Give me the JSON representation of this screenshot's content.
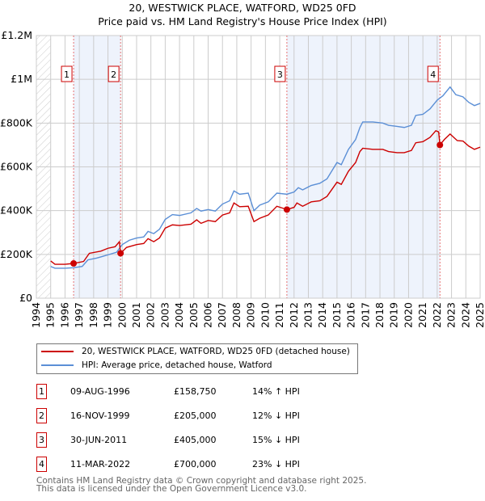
{
  "chart_data": {
    "type": "line",
    "title": "20, WESTWICK PLACE, WATFORD, WD25 0FD",
    "subtitle": "Price paid vs. HM Land Registry's House Price Index (HPI)",
    "xlim": [
      1994,
      2025
    ],
    "ylim": [
      0,
      1200000
    ],
    "y_ticks": [
      0,
      200000,
      400000,
      600000,
      800000,
      1000000,
      1200000
    ],
    "y_tick_labels": [
      "£0",
      "£200K",
      "£400K",
      "£600K",
      "£800K",
      "£1M",
      "£1.2M"
    ],
    "x_ticks": [
      1994,
      1995,
      1996,
      1997,
      1998,
      1999,
      2000,
      2001,
      2002,
      2003,
      2004,
      2005,
      2006,
      2007,
      2008,
      2009,
      2010,
      2011,
      2012,
      2013,
      2014,
      2015,
      2016,
      2017,
      2018,
      2019,
      2020,
      2021,
      2022,
      2023,
      2024,
      2025
    ],
    "grid": true,
    "colors": {
      "property": "#cc0000",
      "hpi": "#5b8fd6",
      "shade": "#eef3fc"
    },
    "series": [
      {
        "name": "20, WESTWICK PLACE, WATFORD, WD25 0FD (detached house)",
        "color": "#cc0000",
        "points": [
          [
            1995,
            170000
          ],
          [
            1995.3,
            155000
          ],
          [
            1996,
            155000
          ],
          [
            1996.6,
            158750
          ],
          [
            1997.3,
            168000
          ],
          [
            1997.7,
            205000
          ],
          [
            1998.5,
            215000
          ],
          [
            1999,
            228000
          ],
          [
            1999.5,
            235000
          ],
          [
            1999.8,
            258000
          ],
          [
            1999.88,
            205000
          ],
          [
            2000.3,
            232000
          ],
          [
            2001,
            245000
          ],
          [
            2001.5,
            250000
          ],
          [
            2001.8,
            272000
          ],
          [
            2002.2,
            258000
          ],
          [
            2002.6,
            275000
          ],
          [
            2003,
            320000
          ],
          [
            2003.5,
            335000
          ],
          [
            2004,
            332000
          ],
          [
            2004.8,
            338000
          ],
          [
            2005.2,
            358000
          ],
          [
            2005.5,
            342000
          ],
          [
            2006,
            355000
          ],
          [
            2006.5,
            350000
          ],
          [
            2007,
            380000
          ],
          [
            2007.5,
            390000
          ],
          [
            2007.8,
            435000
          ],
          [
            2008.2,
            418000
          ],
          [
            2008.8,
            420000
          ],
          [
            2009.2,
            350000
          ],
          [
            2009.6,
            365000
          ],
          [
            2010.2,
            380000
          ],
          [
            2010.8,
            420000
          ],
          [
            2011.5,
            405000
          ],
          [
            2012,
            415000
          ],
          [
            2012.2,
            435000
          ],
          [
            2012.6,
            420000
          ],
          [
            2013.2,
            440000
          ],
          [
            2013.8,
            445000
          ],
          [
            2014.3,
            465000
          ],
          [
            2015,
            530000
          ],
          [
            2015.3,
            520000
          ],
          [
            2015.8,
            580000
          ],
          [
            2016.3,
            620000
          ],
          [
            2016.6,
            670000
          ],
          [
            2016.8,
            685000
          ],
          [
            2017.5,
            680000
          ],
          [
            2018.2,
            680000
          ],
          [
            2018.6,
            670000
          ],
          [
            2019.2,
            665000
          ],
          [
            2019.7,
            665000
          ],
          [
            2020.2,
            675000
          ],
          [
            2020.5,
            710000
          ],
          [
            2021,
            715000
          ],
          [
            2021.5,
            735000
          ],
          [
            2021.9,
            765000
          ],
          [
            2022.1,
            760000
          ],
          [
            2022.19,
            700000
          ],
          [
            2022.5,
            725000
          ],
          [
            2022.9,
            750000
          ],
          [
            2023.4,
            720000
          ],
          [
            2023.8,
            718000
          ],
          [
            2024.2,
            695000
          ],
          [
            2024.6,
            680000
          ],
          [
            2025,
            690000
          ]
        ]
      },
      {
        "name": "HPI: Average price, detached house, Watford",
        "color": "#5b8fd6",
        "points": [
          [
            1995,
            145000
          ],
          [
            1995.3,
            137000
          ],
          [
            1996,
            137000
          ],
          [
            1996.6,
            139000
          ],
          [
            1997.2,
            145000
          ],
          [
            1997.6,
            175000
          ],
          [
            1998.2,
            183000
          ],
          [
            1999,
            198000
          ],
          [
            1999.6,
            210000
          ],
          [
            2000,
            245000
          ],
          [
            2000.5,
            265000
          ],
          [
            2001,
            275000
          ],
          [
            2001.5,
            280000
          ],
          [
            2001.8,
            305000
          ],
          [
            2002.2,
            295000
          ],
          [
            2002.6,
            315000
          ],
          [
            2003,
            360000
          ],
          [
            2003.5,
            382000
          ],
          [
            2004,
            378000
          ],
          [
            2004.8,
            390000
          ],
          [
            2005.2,
            410000
          ],
          [
            2005.5,
            398000
          ],
          [
            2006,
            405000
          ],
          [
            2006.5,
            398000
          ],
          [
            2007,
            430000
          ],
          [
            2007.5,
            445000
          ],
          [
            2007.8,
            490000
          ],
          [
            2008.2,
            475000
          ],
          [
            2008.8,
            480000
          ],
          [
            2009.2,
            400000
          ],
          [
            2009.6,
            425000
          ],
          [
            2010.2,
            440000
          ],
          [
            2010.8,
            480000
          ],
          [
            2011.5,
            475000
          ],
          [
            2012,
            485000
          ],
          [
            2012.3,
            505000
          ],
          [
            2012.6,
            495000
          ],
          [
            2013.2,
            515000
          ],
          [
            2013.8,
            525000
          ],
          [
            2014.3,
            545000
          ],
          [
            2015,
            620000
          ],
          [
            2015.3,
            610000
          ],
          [
            2015.8,
            680000
          ],
          [
            2016.3,
            725000
          ],
          [
            2016.6,
            780000
          ],
          [
            2016.8,
            805000
          ],
          [
            2017.5,
            805000
          ],
          [
            2018.2,
            800000
          ],
          [
            2018.6,
            790000
          ],
          [
            2019.2,
            785000
          ],
          [
            2019.7,
            780000
          ],
          [
            2020.2,
            790000
          ],
          [
            2020.5,
            835000
          ],
          [
            2021,
            840000
          ],
          [
            2021.5,
            865000
          ],
          [
            2022,
            905000
          ],
          [
            2022.4,
            925000
          ],
          [
            2022.9,
            965000
          ],
          [
            2023.3,
            930000
          ],
          [
            2023.8,
            920000
          ],
          [
            2024.2,
            895000
          ],
          [
            2024.6,
            880000
          ],
          [
            2025,
            890000
          ]
        ]
      }
    ],
    "sales": [
      {
        "label": "1",
        "x": 1996.6,
        "value": 158750,
        "date": "09-AUG-1996",
        "price": "£158,750",
        "hpi": "14% ↑ HPI"
      },
      {
        "label": "2",
        "x": 1999.88,
        "value": 205000,
        "date": "16-NOV-1999",
        "price": "£205,000",
        "hpi": "12% ↓ HPI"
      },
      {
        "label": "3",
        "x": 2011.5,
        "value": 405000,
        "date": "30-JUN-2011",
        "price": "£405,000",
        "hpi": "15% ↓ HPI"
      },
      {
        "label": "4",
        "x": 2022.19,
        "value": 700000,
        "date": "11-MAR-2022",
        "price": "£700,000",
        "hpi": "23% ↓ HPI"
      }
    ]
  },
  "footer": {
    "line1": "Contains HM Land Registry data © Crown copyright and database right 2025.",
    "line2": "This data is licensed under the Open Government Licence v3.0."
  }
}
